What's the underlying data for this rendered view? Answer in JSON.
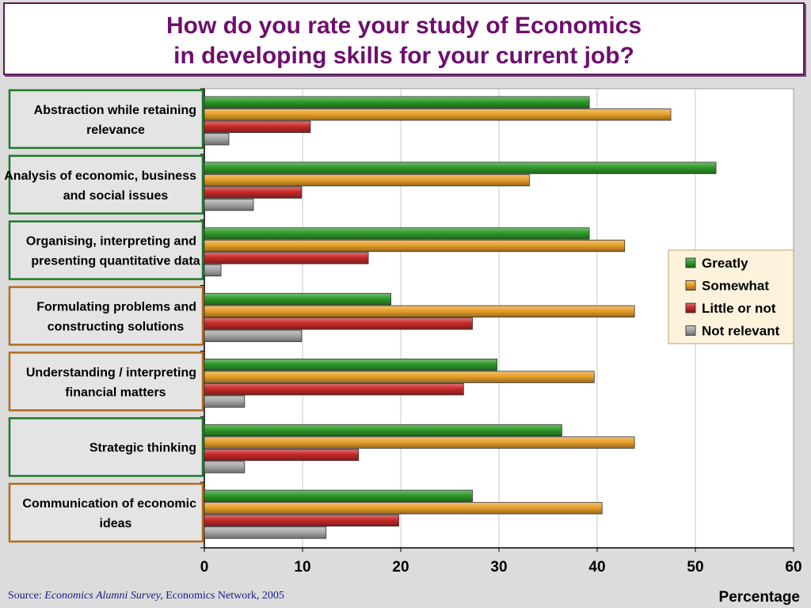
{
  "chart_data": {
    "type": "bar",
    "orientation": "horizontal",
    "title_lines": [
      "How do you rate your study of Economics",
      "in developing skills for your current job?"
    ],
    "categories": [
      [
        "Abstraction while retaining",
        "relevance"
      ],
      [
        "Analysis of economic, business",
        "and social issues"
      ],
      [
        "Organising, interpreting and",
        "presenting quantitative data"
      ],
      [
        "Formulating problems and",
        "constructing solutions"
      ],
      [
        "Understanding / interpreting",
        "financial matters"
      ],
      [
        "Strategic thinking"
      ],
      [
        "Communication of economic",
        "ideas"
      ]
    ],
    "category_box_colors": [
      "#1f7a2a",
      "#1f7a2a",
      "#1f7a2a",
      "#b46a1c",
      "#b46a1c",
      "#1f7a2a",
      "#b46a1c"
    ],
    "series": [
      {
        "name": "Greatly",
        "color": "#2f9a2a",
        "values": [
          39.2,
          52.1,
          39.2,
          19.0,
          29.8,
          36.4,
          27.3
        ]
      },
      {
        "name": "Somewhat",
        "color": "#e8a02a",
        "values": [
          47.5,
          33.1,
          42.8,
          43.8,
          39.7,
          43.8,
          40.5
        ]
      },
      {
        "name": "Little or not",
        "color": "#c82a2a",
        "values": [
          10.8,
          9.9,
          16.7,
          27.3,
          26.4,
          15.7,
          19.8
        ]
      },
      {
        "name": "Not relevant",
        "color": "#a8a8a8",
        "values": [
          2.5,
          5.0,
          1.7,
          9.9,
          4.1,
          4.1,
          12.4
        ]
      }
    ],
    "xlabel": "Percentage",
    "xlim": [
      0,
      60
    ],
    "xticks": [
      "0",
      "10",
      "20",
      "30",
      "40",
      "50",
      "60"
    ],
    "grid": true,
    "legend_position": "right"
  },
  "source": {
    "prefix": "Source: ",
    "survey": "Economics Alumni Survey,",
    "suffix": " Economics Network, 2005"
  }
}
